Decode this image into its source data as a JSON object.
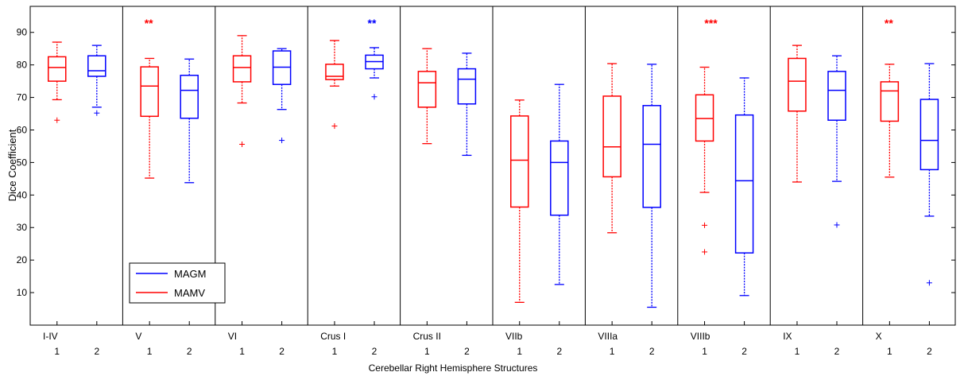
{
  "chart_data": {
    "type": "boxplot",
    "title": "",
    "xlabel": "Cerebellar Right Hemisphere Structures",
    "ylabel": "Dice Coefficient",
    "ylim": [
      0,
      98
    ],
    "yticks": [
      10,
      20,
      30,
      40,
      50,
      60,
      70,
      80,
      90
    ],
    "grid": false,
    "legend": {
      "placement": "bottom-left-inside",
      "entries": [
        {
          "name": "MAGM",
          "color": "#0000ff"
        },
        {
          "name": "MAMV",
          "color": "#ff0000"
        }
      ]
    },
    "colors": {
      "1": "#ff0000",
      "2": "#0000ff"
    },
    "groups": [
      {
        "label": "I-IV",
        "significance": "",
        "sig_color": "",
        "boxes": [
          {
            "label": "1",
            "whislo": 69.3,
            "q1": 75.0,
            "med": 79.2,
            "q3": 82.5,
            "whishi": 87.0,
            "fliers": [
              63.0
            ]
          },
          {
            "label": "2",
            "whislo": 67.0,
            "q1": 76.5,
            "med": 78.2,
            "q3": 82.8,
            "whishi": 86.0,
            "fliers": [
              65.2
            ]
          }
        ]
      },
      {
        "label": "V",
        "significance": "**",
        "sig_color": "#ff0000",
        "boxes": [
          {
            "label": "1",
            "whislo": 45.2,
            "q1": 64.2,
            "med": 73.5,
            "q3": 79.4,
            "whishi": 82.0,
            "fliers": []
          },
          {
            "label": "2",
            "whislo": 43.8,
            "q1": 63.6,
            "med": 72.2,
            "q3": 76.8,
            "whishi": 81.8,
            "fliers": []
          }
        ]
      },
      {
        "label": "VI",
        "significance": "",
        "sig_color": "",
        "boxes": [
          {
            "label": "1",
            "whislo": 68.3,
            "q1": 74.8,
            "med": 79.2,
            "q3": 82.8,
            "whishi": 89.0,
            "fliers": [
              55.6
            ]
          },
          {
            "label": "2",
            "whislo": 66.3,
            "q1": 74.0,
            "med": 79.3,
            "q3": 84.3,
            "whishi": 85.0,
            "fliers": [
              56.8
            ]
          }
        ]
      },
      {
        "label": "Crus I",
        "significance": "**",
        "sig_color": "#0000ff",
        "boxes": [
          {
            "label": "1",
            "whislo": 73.5,
            "q1": 75.5,
            "med": 76.5,
            "q3": 80.2,
            "whishi": 87.5,
            "fliers": [
              61.2
            ]
          },
          {
            "label": "2",
            "whislo": 76.0,
            "q1": 78.8,
            "med": 81.0,
            "q3": 83.0,
            "whishi": 85.3,
            "fliers": [
              70.2
            ]
          }
        ]
      },
      {
        "label": "Crus II",
        "significance": "",
        "sig_color": "",
        "boxes": [
          {
            "label": "1",
            "whislo": 55.8,
            "q1": 67.0,
            "med": 74.5,
            "q3": 78.0,
            "whishi": 85.0,
            "fliers": []
          },
          {
            "label": "2",
            "whislo": 52.2,
            "q1": 68.0,
            "med": 75.6,
            "q3": 78.8,
            "whishi": 83.6,
            "fliers": []
          }
        ]
      },
      {
        "label": "VIIb",
        "significance": "",
        "sig_color": "",
        "boxes": [
          {
            "label": "1",
            "whislo": 7.0,
            "q1": 36.3,
            "med": 50.7,
            "q3": 64.3,
            "whishi": 69.2,
            "fliers": []
          },
          {
            "label": "2",
            "whislo": 12.5,
            "q1": 33.8,
            "med": 50.0,
            "q3": 56.6,
            "whishi": 74.0,
            "fliers": []
          }
        ]
      },
      {
        "label": "VIIIa",
        "significance": "",
        "sig_color": "",
        "boxes": [
          {
            "label": "1",
            "whislo": 28.4,
            "q1": 45.6,
            "med": 54.8,
            "q3": 70.4,
            "whishi": 80.4,
            "fliers": []
          },
          {
            "label": "2",
            "whislo": 5.5,
            "q1": 36.2,
            "med": 55.6,
            "q3": 67.5,
            "whishi": 80.2,
            "fliers": []
          }
        ]
      },
      {
        "label": "VIIIb",
        "significance": "***",
        "sig_color": "#ff0000",
        "boxes": [
          {
            "label": "1",
            "whislo": 40.8,
            "q1": 56.6,
            "med": 63.5,
            "q3": 70.8,
            "whishi": 79.3,
            "fliers": [
              30.7,
              22.5
            ]
          },
          {
            "label": "2",
            "whislo": 9.1,
            "q1": 22.2,
            "med": 44.4,
            "q3": 64.6,
            "whishi": 76.0,
            "fliers": []
          }
        ]
      },
      {
        "label": "IX",
        "significance": "",
        "sig_color": "",
        "boxes": [
          {
            "label": "1",
            "whislo": 44.0,
            "q1": 65.8,
            "med": 75.0,
            "q3": 82.0,
            "whishi": 86.0,
            "fliers": []
          },
          {
            "label": "2",
            "whislo": 44.2,
            "q1": 63.0,
            "med": 72.2,
            "q3": 78.0,
            "whishi": 82.8,
            "fliers": [
              30.8
            ]
          }
        ]
      },
      {
        "label": "X",
        "significance": "**",
        "sig_color": "#ff0000",
        "boxes": [
          {
            "label": "1",
            "whislo": 45.5,
            "q1": 62.7,
            "med": 72.0,
            "q3": 74.8,
            "whishi": 80.2,
            "fliers": []
          },
          {
            "label": "2",
            "whislo": 33.5,
            "q1": 47.8,
            "med": 56.8,
            "q3": 69.4,
            "whishi": 80.4,
            "fliers": [
              13.0
            ]
          }
        ]
      }
    ]
  }
}
